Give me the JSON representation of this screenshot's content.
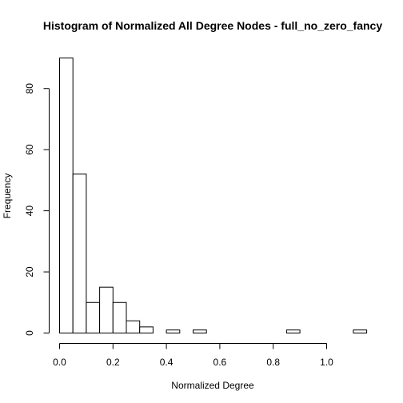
{
  "chart_data": {
    "type": "bar",
    "title": "Histogram of Normalized All Degree Nodes - full_no_zero_fancy",
    "xlabel": "Normalized Degree",
    "ylabel": "Frequency",
    "bin_width": 0.05,
    "bins": [
      {
        "x0": 0.0,
        "x1": 0.05,
        "count": 90
      },
      {
        "x0": 0.05,
        "x1": 0.1,
        "count": 52
      },
      {
        "x0": 0.1,
        "x1": 0.15,
        "count": 10
      },
      {
        "x0": 0.15,
        "x1": 0.2,
        "count": 15
      },
      {
        "x0": 0.2,
        "x1": 0.25,
        "count": 10
      },
      {
        "x0": 0.25,
        "x1": 0.3,
        "count": 4
      },
      {
        "x0": 0.3,
        "x1": 0.35,
        "count": 2
      },
      {
        "x0": 0.35,
        "x1": 0.4,
        "count": 0
      },
      {
        "x0": 0.4,
        "x1": 0.45,
        "count": 1
      },
      {
        "x0": 0.45,
        "x1": 0.5,
        "count": 0
      },
      {
        "x0": 0.5,
        "x1": 0.55,
        "count": 1
      },
      {
        "x0": 0.55,
        "x1": 0.6,
        "count": 0
      },
      {
        "x0": 0.6,
        "x1": 0.65,
        "count": 0
      },
      {
        "x0": 0.65,
        "x1": 0.7,
        "count": 0
      },
      {
        "x0": 0.7,
        "x1": 0.75,
        "count": 0
      },
      {
        "x0": 0.75,
        "x1": 0.8,
        "count": 0
      },
      {
        "x0": 0.8,
        "x1": 0.85,
        "count": 0
      },
      {
        "x0": 0.85,
        "x1": 0.9,
        "count": 1
      },
      {
        "x0": 0.9,
        "x1": 0.95,
        "count": 0
      },
      {
        "x0": 0.95,
        "x1": 1.0,
        "count": 0
      },
      {
        "x0": 1.0,
        "x1": 1.05,
        "count": 0
      },
      {
        "x0": 1.05,
        "x1": 1.1,
        "count": 0
      },
      {
        "x0": 1.1,
        "x1": 1.15,
        "count": 1
      }
    ],
    "xlim": [
      0,
      1.15
    ],
    "ylim": [
      0,
      90
    ],
    "xticks": [
      0.0,
      0.2,
      0.4,
      0.6,
      0.8,
      1.0
    ],
    "xtick_labels": [
      "0.0",
      "0.2",
      "0.4",
      "0.6",
      "0.8",
      "1.0"
    ],
    "yticks": [
      0,
      20,
      40,
      60,
      80
    ],
    "ytick_labels": [
      "0",
      "20",
      "40",
      "60",
      "80"
    ],
    "grid": false,
    "legend": "none"
  }
}
